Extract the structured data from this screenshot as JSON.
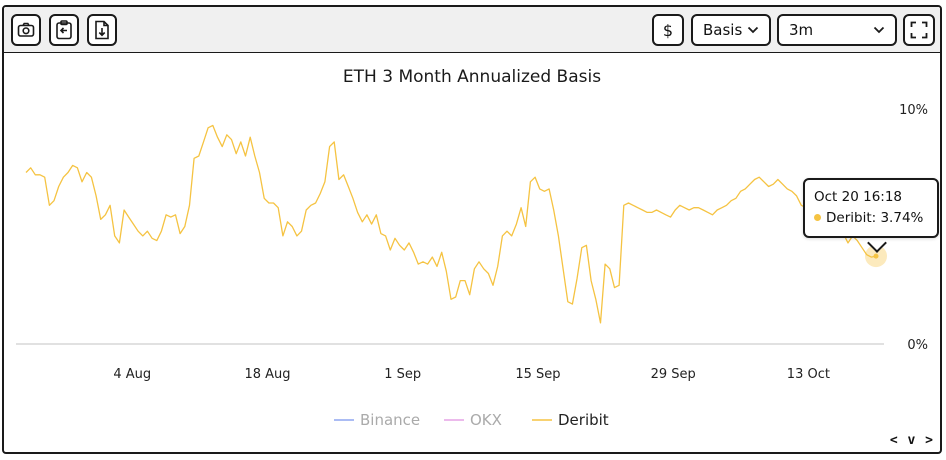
{
  "toolbar": {
    "left_buttons": [
      {
        "name": "screenshot-button",
        "icon": "camera-icon"
      },
      {
        "name": "copy-button",
        "icon": "clipboard-icon"
      },
      {
        "name": "download-button",
        "icon": "download-icon"
      }
    ],
    "currency_label": "$",
    "metric_select": {
      "value": "Basis"
    },
    "range_select": {
      "value": "3m"
    },
    "fullscreen_icon": "fullscreen-icon"
  },
  "tooltip": {
    "time": "Oct 20 16:18",
    "series": "Deribit",
    "value_text": "3.74%",
    "color": "#F5C342"
  },
  "nav_label": "< v >",
  "chart_data": {
    "type": "line",
    "title": "ETH 3 Month Annualized Basis",
    "x_start": "2023-07-24",
    "x_end": "2023-10-20",
    "x_ticks": [
      "4 Aug",
      "18 Aug",
      "1 Sep",
      "15 Sep",
      "29 Sep",
      "13 Oct"
    ],
    "y_ticks": [
      "0%",
      "10%"
    ],
    "ylim": [
      0,
      10
    ],
    "grid": false,
    "legend_position": "bottom",
    "series": [
      {
        "name": "Binance",
        "color": "#8FA6F0",
        "values": []
      },
      {
        "name": "OKX",
        "color": "#E6A3E6",
        "values": []
      },
      {
        "name": "Deribit",
        "color": "#F5C342",
        "values": [
          7.3,
          7.5,
          7.2,
          7.2,
          7.1,
          5.9,
          6.1,
          6.7,
          7.1,
          7.3,
          7.6,
          7.5,
          6.9,
          7.3,
          7.1,
          6.3,
          5.3,
          5.5,
          5.9,
          4.6,
          4.3,
          5.7,
          5.4,
          5.1,
          4.8,
          4.6,
          4.8,
          4.5,
          4.4,
          4.8,
          5.5,
          5.4,
          5.5,
          4.7,
          5.0,
          5.9,
          7.9,
          8.0,
          8.6,
          9.2,
          9.3,
          8.8,
          8.4,
          8.9,
          8.7,
          8.1,
          8.6,
          8.0,
          8.8,
          8.0,
          7.3,
          6.2,
          6.0,
          6.0,
          5.8,
          4.6,
          5.2,
          5.0,
          4.6,
          4.8,
          5.7,
          5.9,
          6.0,
          6.4,
          6.9,
          8.4,
          8.6,
          7.0,
          7.2,
          6.7,
          6.2,
          5.6,
          5.2,
          5.5,
          5.1,
          5.5,
          4.7,
          4.6,
          4.0,
          4.5,
          4.2,
          4.0,
          4.3,
          3.9,
          3.4,
          3.5,
          3.4,
          3.7,
          3.3,
          3.9,
          3.1,
          1.9,
          2.0,
          2.7,
          2.7,
          2.1,
          3.2,
          3.5,
          3.2,
          3.0,
          2.5,
          3.3,
          4.6,
          4.8,
          4.6,
          5.1,
          5.8,
          5.0,
          6.9,
          7.1,
          6.6,
          6.5,
          6.6,
          5.7,
          4.6,
          3.2,
          1.8,
          1.7,
          2.8,
          4.1,
          4.2,
          2.7,
          1.9,
          0.9,
          3.4,
          3.2,
          2.4,
          2.5,
          5.9,
          6.0,
          5.9,
          5.8,
          5.7,
          5.6,
          5.6,
          5.7,
          5.6,
          5.5,
          5.4,
          5.7,
          5.9,
          5.8,
          5.7,
          5.8,
          5.8,
          5.7,
          5.6,
          5.5,
          5.7,
          5.8,
          5.9,
          6.1,
          6.2,
          6.5,
          6.6,
          6.8,
          7.0,
          7.1,
          6.9,
          6.7,
          6.8,
          7.0,
          6.8,
          6.6,
          6.5,
          6.3,
          5.9,
          5.8,
          5.6,
          5.4,
          5.3,
          5.5,
          5.6,
          5.4,
          5.1,
          4.7,
          4.3,
          4.6,
          4.4,
          4.1,
          3.8,
          3.7,
          3.74
        ]
      }
    ]
  }
}
